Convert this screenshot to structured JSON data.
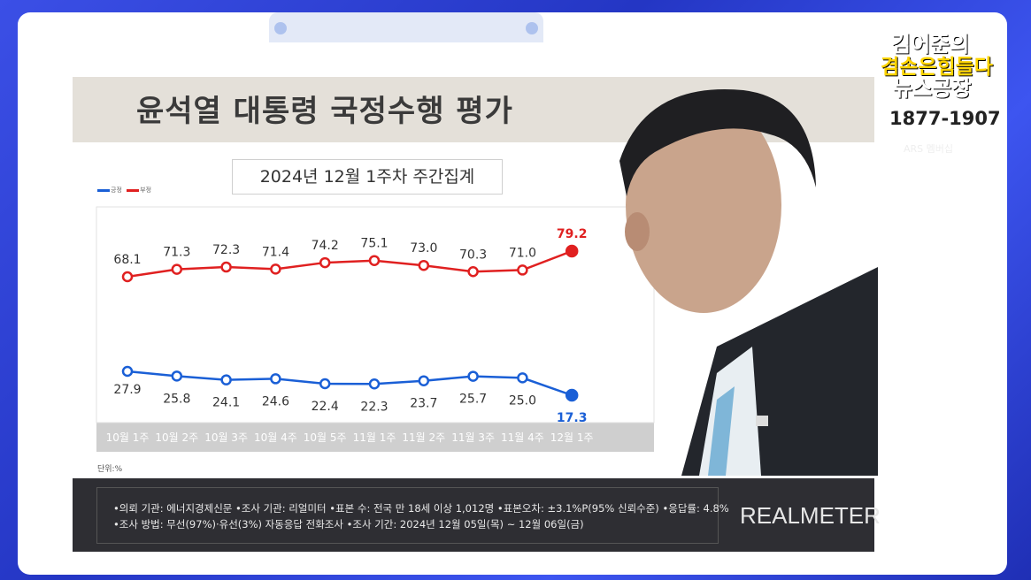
{
  "title": "윤석열 대통령 국정수행 평가",
  "subtitle": "2024년 12월 1주차 주간집계",
  "legend": {
    "positive": "긍정",
    "negative": "부정"
  },
  "unit_label": "단위:%",
  "colors": {
    "positive": "#1a5fd6",
    "negative": "#e02020"
  },
  "chart_data": {
    "type": "line",
    "categories": [
      "10월 1주",
      "10월 2주",
      "10월 3주",
      "10월 4주",
      "10월 5주",
      "11월 1주",
      "11월 2주",
      "11월 3주",
      "11월 4주",
      "12월 1주"
    ],
    "series": [
      {
        "name": "부정",
        "values": [
          68.1,
          71.3,
          72.3,
          71.4,
          74.2,
          75.1,
          73.0,
          70.3,
          71.0,
          79.2
        ]
      },
      {
        "name": "긍정",
        "values": [
          27.9,
          25.8,
          24.1,
          24.6,
          22.4,
          22.3,
          23.7,
          25.7,
          25.0,
          17.3
        ]
      }
    ],
    "value_labels": {
      "부정": [
        "68.1",
        "71.3",
        "72.3",
        "71.4",
        "74.2",
        "75.1",
        "73.0",
        "70.3",
        "71.0",
        "79.2"
      ],
      "긍정": [
        "27.9",
        "25.8",
        "24.1",
        "24.6",
        "22.4",
        "22.3",
        "23.7",
        "25.7",
        "25.0",
        "17.3"
      ]
    },
    "title": "윤석열 대통령 국정수행 평가",
    "ylim": [
      0,
      100
    ],
    "grid": false,
    "legend_position": "top-left"
  },
  "notes": {
    "line1": "•의뢰 기관: 에너지경제신문 •조사 기관: 리얼미터 •표본 수: 전국 만 18세 이상 1,012명 •표본오차: ±3.1%P(95% 신뢰수준) •응답률: 4.8%",
    "line2": "•조사 방법: 무선(97%)·유선(3%) 자동응답 전화조사 •조사 기간: 2024년 12월 05일(목) ~ 12월 06일(금)"
  },
  "brand": "REALMETER",
  "logo": {
    "line1": "김어준의",
    "line2": "겸손은힘들다",
    "line3": "뉴스공장",
    "phone": "1877-1907",
    "ars": "ARS 멤버십"
  }
}
